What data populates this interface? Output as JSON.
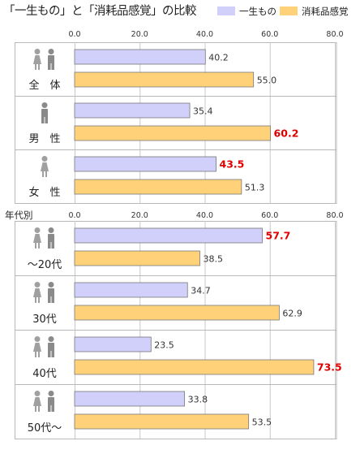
{
  "title": "「一生もの」と「消耗品感覚」の比較",
  "legend": [
    {
      "label": "一生もの",
      "color": "#d0d0fa"
    },
    {
      "label": "消耗品感覚",
      "color": "#ffd27a"
    }
  ],
  "subheading": "年代別",
  "highlight_color": "#e00000",
  "bar_stroke": "#777777",
  "chart_data": [
    {
      "type": "bar",
      "orientation": "horizontal",
      "xlim": [
        0,
        80
      ],
      "ticks": [
        "0.0",
        "20.0",
        "40.0",
        "60.0",
        "80.0"
      ],
      "tick_values": [
        0,
        20,
        40,
        60,
        80
      ],
      "categories": [
        "全　体",
        "男　性",
        "女　性"
      ],
      "series": [
        {
          "name": "一生もの",
          "values": [
            40.2,
            35.4,
            43.5
          ]
        },
        {
          "name": "消耗品感覚",
          "values": [
            55.0,
            60.2,
            51.3
          ]
        }
      ],
      "value_labels": [
        [
          "40.2",
          "55.0"
        ],
        [
          "35.4",
          "60.2"
        ],
        [
          "43.5",
          "51.3"
        ]
      ],
      "highlights": [
        [
          false,
          false
        ],
        [
          false,
          true
        ],
        [
          true,
          false
        ]
      ],
      "icons": [
        "female-male-icon",
        "male-icon",
        "female-icon"
      ]
    },
    {
      "type": "bar",
      "orientation": "horizontal",
      "xlim": [
        0,
        80
      ],
      "ticks": [
        "0.0",
        "20.0",
        "40.0",
        "60.0",
        "80.0"
      ],
      "tick_values": [
        0,
        20,
        40,
        60,
        80
      ],
      "categories": [
        "～20代",
        "30代",
        "40代",
        "50代～"
      ],
      "series": [
        {
          "name": "一生もの",
          "values": [
            57.7,
            34.7,
            23.5,
            33.8
          ]
        },
        {
          "name": "消耗品感覚",
          "values": [
            38.5,
            62.9,
            73.5,
            53.5
          ]
        }
      ],
      "value_labels": [
        [
          "57.7",
          "38.5"
        ],
        [
          "34.7",
          "62.9"
        ],
        [
          "23.5",
          "73.5"
        ],
        [
          "33.8",
          "53.5"
        ]
      ],
      "highlights": [
        [
          true,
          false
        ],
        [
          false,
          false
        ],
        [
          false,
          true
        ],
        [
          false,
          false
        ]
      ],
      "icons": [
        "female-male-icon",
        "female-male-icon",
        "female-male-icon",
        "female-male-icon"
      ]
    }
  ]
}
